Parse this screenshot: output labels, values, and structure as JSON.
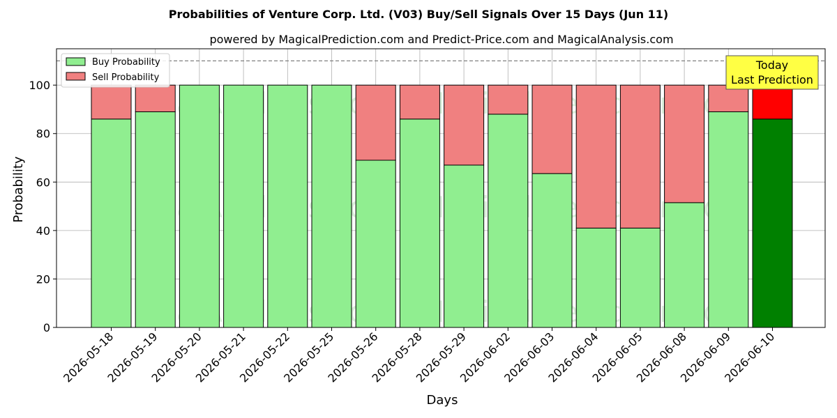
{
  "chart_data": {
    "type": "bar",
    "stacked": true,
    "title": "Probabilities of Venture Corp. Ltd. (V03) Buy/Sell Signals Over 15 Days (Jun 11)",
    "subtitle": "powered by MagicalPrediction.com and Predict-Price.com and MagicalAnalysis.com",
    "xlabel": "Days",
    "ylabel": "Probability",
    "ylim": [
      0,
      115
    ],
    "yticks": [
      0,
      20,
      40,
      60,
      80,
      100
    ],
    "reference_line": 110,
    "grid": true,
    "legend_position": "top-left",
    "categories": [
      "2026-05-18",
      "2026-05-19",
      "2026-05-20",
      "2026-05-21",
      "2026-05-22",
      "2026-05-25",
      "2026-05-26",
      "2026-05-28",
      "2026-05-29",
      "2026-06-02",
      "2026-06-03",
      "2026-06-04",
      "2026-06-05",
      "2026-06-08",
      "2026-06-09",
      "2026-06-10"
    ],
    "series": [
      {
        "name": "Buy Probability",
        "color": "#90ee90",
        "highlight_color": "#008000",
        "values": [
          86,
          89,
          100,
          100,
          100,
          100,
          69,
          86,
          67,
          88,
          63.5,
          41,
          41,
          51.5,
          89,
          86
        ]
      },
      {
        "name": "Sell Probability",
        "color": "#f08080",
        "highlight_color": "#ff0000",
        "values": [
          14,
          11,
          0,
          0,
          0,
          0,
          31,
          14,
          33,
          12,
          36.5,
          59,
          59,
          48.5,
          11,
          14
        ]
      }
    ],
    "highlight_index": 15,
    "annotation": {
      "line1": "Today",
      "line2": "Last Prediction",
      "background": "#ffff44"
    },
    "watermarks": [
      "MagicalAnalysis.com",
      "MagicalPrediction.com"
    ]
  }
}
